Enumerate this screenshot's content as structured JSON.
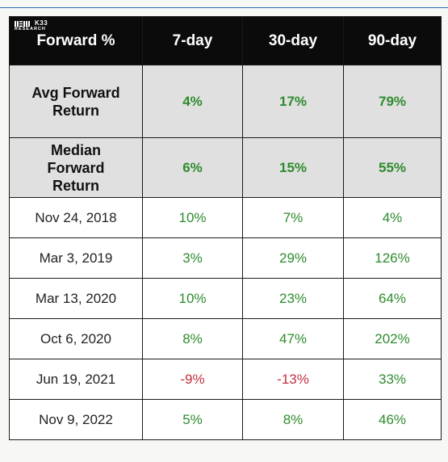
{
  "table": {
    "header": {
      "brand": "K33",
      "brand_sub": "RESEARCH",
      "columns": [
        "Forward %",
        "7-day",
        "30-day",
        "90-day"
      ]
    },
    "summary_rows": [
      {
        "label_lines": [
          "Avg Forward",
          "Return"
        ],
        "values": [
          "4%",
          "17%",
          "79%"
        ]
      },
      {
        "label_lines": [
          "Median",
          "Forward",
          "Return"
        ],
        "values": [
          "6%",
          "15%",
          "55%"
        ]
      }
    ],
    "rows": [
      {
        "date": "Nov 24, 2018",
        "values": [
          "10%",
          "7%",
          "4%"
        ]
      },
      {
        "date": "Mar 3, 2019",
        "values": [
          "3%",
          "29%",
          "126%"
        ]
      },
      {
        "date": "Mar 13, 2020",
        "values": [
          "10%",
          "23%",
          "64%"
        ]
      },
      {
        "date": "Oct 6, 2020",
        "values": [
          "8%",
          "47%",
          "202%"
        ]
      },
      {
        "date": "Jun 19, 2021",
        "values": [
          "-9%",
          "-13%",
          "33%"
        ]
      },
      {
        "date": "Nov 9, 2022",
        "values": [
          "5%",
          "8%",
          "46%"
        ]
      }
    ],
    "colors": {
      "positive": "#2e8b2e",
      "negative": "#c03040",
      "header_bg": "#0b0b0b",
      "summary_bg": "#e0e0e0"
    }
  }
}
